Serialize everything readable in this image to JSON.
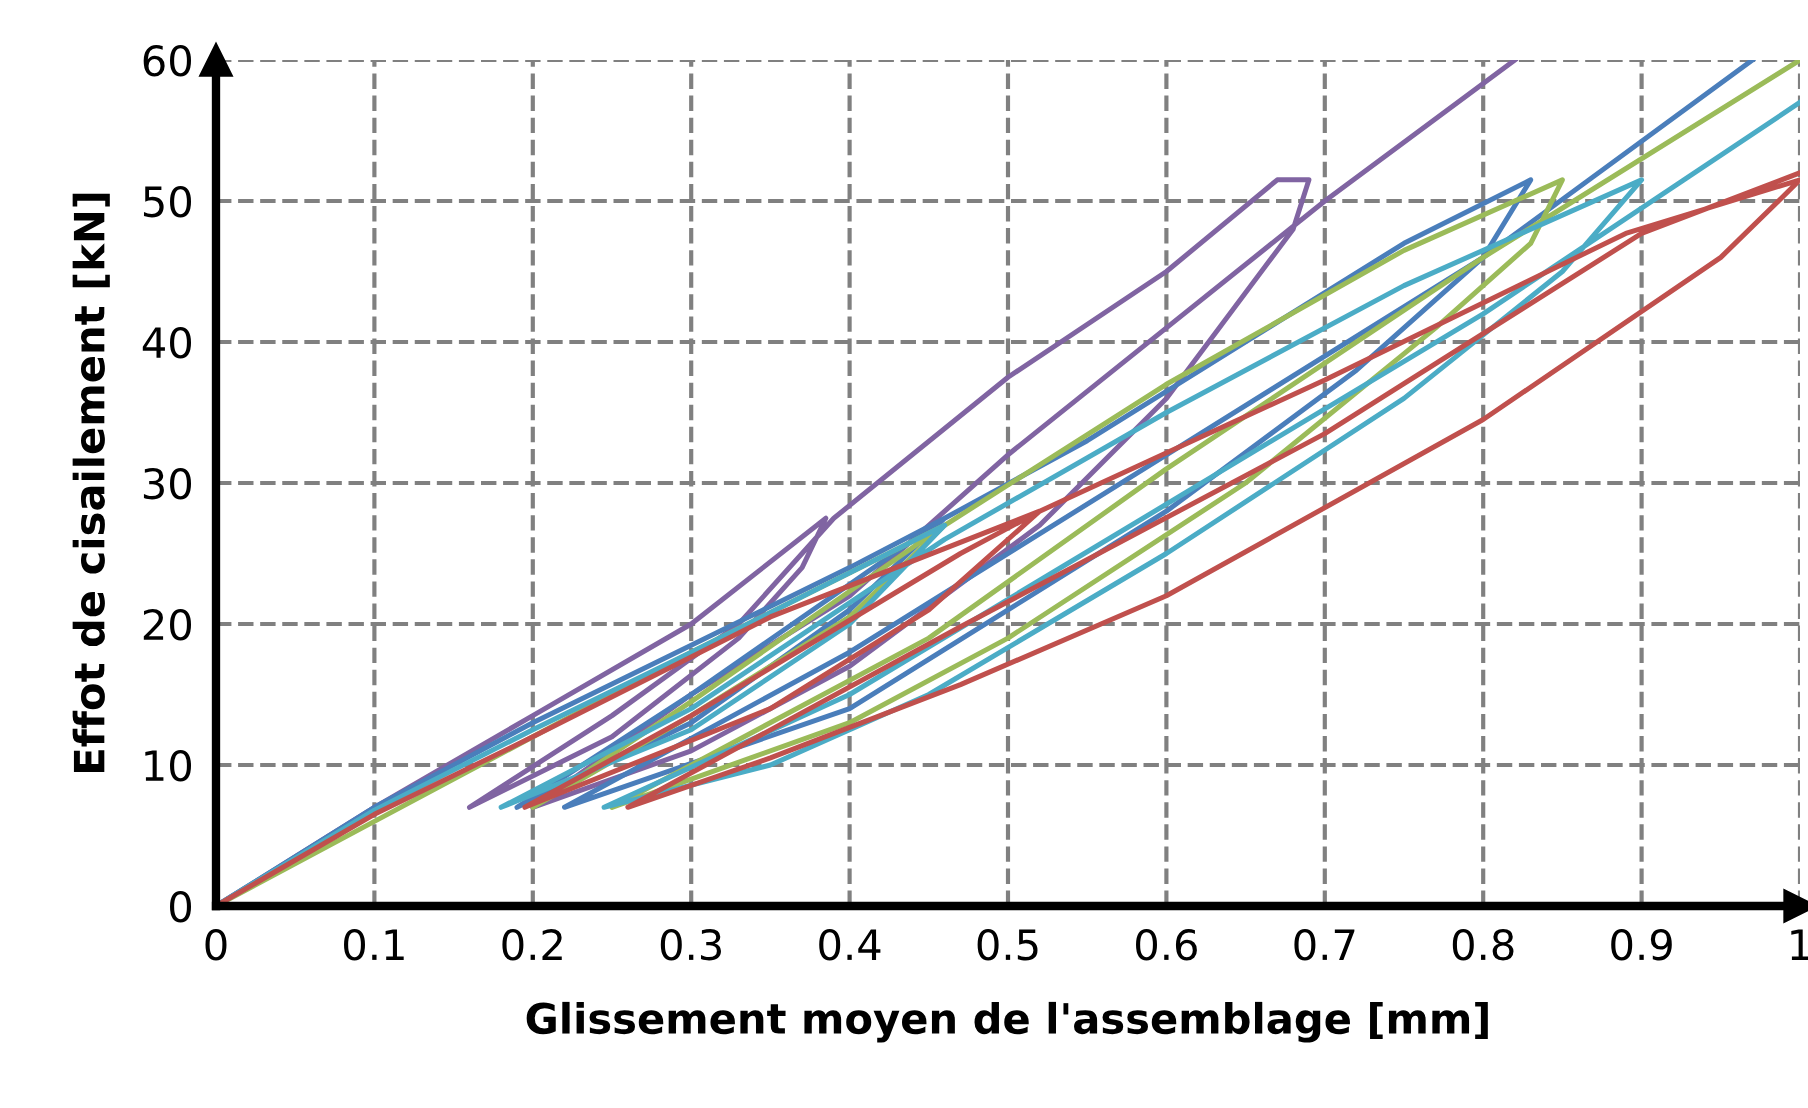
{
  "chart_data": {
    "type": "line",
    "xlabel": "Glissement moyen de l'assemblage [mm]",
    "ylabel": "Effot de cisailement [kN]",
    "xlim": [
      0,
      1
    ],
    "ylim": [
      0,
      60
    ],
    "xticks": [
      0,
      0.1,
      0.2,
      0.3,
      0.4,
      0.5,
      0.6,
      0.7,
      0.8,
      0.9,
      1
    ],
    "yticks": [
      0,
      10,
      20,
      30,
      40,
      50,
      60
    ],
    "grid": true,
    "legend": false,
    "marker": "none",
    "line_style": "solid",
    "series": [
      {
        "color": "#8064a2",
        "x": [
          0,
          0.1,
          0.2,
          0.3,
          0.385,
          0.37,
          0.33,
          0.25,
          0.16,
          0.25,
          0.33,
          0.39,
          0.5,
          0.6,
          0.67,
          0.69,
          0.68,
          0.6,
          0.52,
          0.4,
          0.3,
          0.2,
          0.3,
          0.4,
          0.5,
          0.6,
          0.7,
          0.82
        ],
        "values": [
          0,
          7,
          13.5,
          20,
          27.5,
          24,
          19,
          12,
          7,
          13.5,
          20,
          27.5,
          37.5,
          45,
          51.5,
          51.5,
          48,
          36,
          27,
          17,
          11,
          7,
          15,
          22,
          32,
          41,
          50,
          60
        ]
      },
      {
        "color": "#4a7ebb",
        "x": [
          0,
          0.1,
          0.2,
          0.3,
          0.4,
          0.46,
          0.4,
          0.3,
          0.19,
          0.3,
          0.46,
          0.55,
          0.65,
          0.75,
          0.83,
          0.8,
          0.72,
          0.6,
          0.5,
          0.4,
          0.22,
          0.4,
          0.6,
          0.8,
          0.97
        ],
        "values": [
          0,
          7,
          13,
          18.5,
          24,
          27.5,
          21,
          13,
          7,
          15,
          27.5,
          33,
          40,
          47,
          51.5,
          46,
          38,
          28,
          21,
          14,
          7,
          18,
          32,
          46,
          60
        ]
      },
      {
        "color": "#9bbb59",
        "x": [
          0,
          0.1,
          0.2,
          0.3,
          0.46,
          0.4,
          0.3,
          0.2,
          0.3,
          0.46,
          0.6,
          0.75,
          0.85,
          0.83,
          0.77,
          0.65,
          0.5,
          0.4,
          0.25,
          0.45,
          0.6,
          0.8,
          1.0
        ],
        "values": [
          0,
          6,
          12,
          18,
          27,
          20.5,
          13.5,
          7,
          14.5,
          27,
          37,
          46.5,
          51.5,
          47,
          41,
          30,
          19,
          13,
          7,
          19,
          31,
          46,
          60
        ]
      },
      {
        "color": "#4bacc6",
        "x": [
          0,
          0.1,
          0.2,
          0.3,
          0.46,
          0.4,
          0.3,
          0.18,
          0.3,
          0.46,
          0.6,
          0.75,
          0.9,
          0.85,
          0.75,
          0.6,
          0.45,
          0.35,
          0.245,
          0.4,
          0.6,
          0.8,
          1.0
        ],
        "values": [
          0,
          6.8,
          12.5,
          18,
          27,
          20,
          12.5,
          7,
          14,
          26,
          35,
          44,
          51.5,
          45,
          36,
          25,
          15,
          10,
          7,
          15,
          28.5,
          42,
          57
        ]
      },
      {
        "color": "#c0504d",
        "x": [
          0,
          0.1,
          0.2,
          0.35,
          0.52,
          0.45,
          0.35,
          0.195,
          0.3,
          0.47,
          0.52,
          0.7,
          0.89,
          1.0,
          0.95,
          0.8,
          0.6,
          0.47,
          0.35,
          0.26,
          0.47,
          0.7,
          0.9,
          1.0
        ],
        "values": [
          0,
          6.5,
          12,
          20.5,
          28,
          21,
          14,
          7,
          13.5,
          25,
          28,
          37.3,
          47.7,
          51.5,
          46,
          34.5,
          22,
          15.7,
          10.5,
          7,
          19.8,
          33.5,
          47.7,
          52
        ]
      }
    ]
  }
}
